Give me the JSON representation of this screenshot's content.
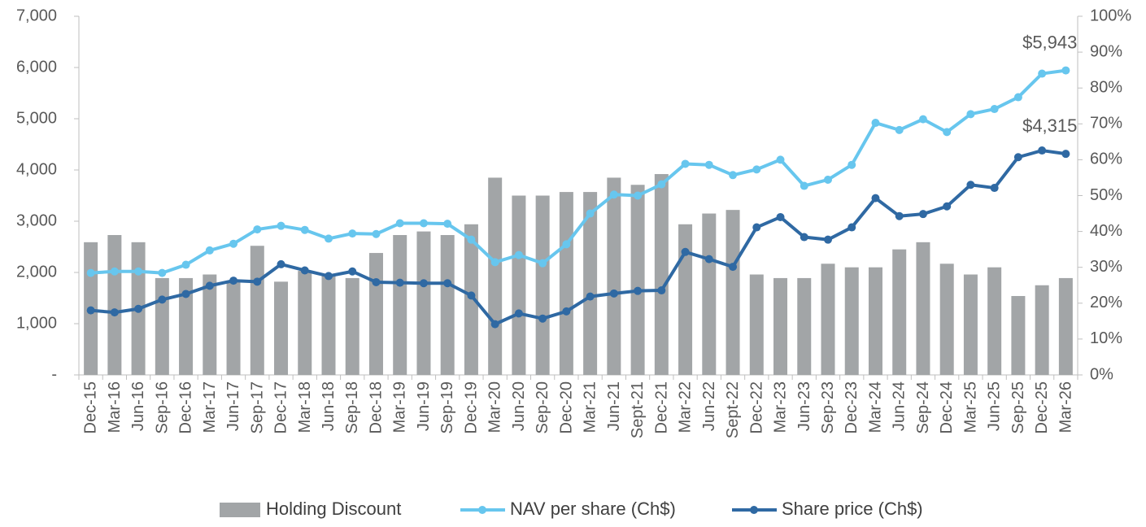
{
  "chart_data": {
    "type": "bar_line",
    "categories": [
      "Dec-15",
      "Mar-16",
      "Jun-16",
      "Sep-16",
      "Dec-16",
      "Mar-17",
      "Jun-17",
      "Sep-17",
      "Dec-17",
      "Mar-18",
      "Jun-18",
      "Sep-18",
      "Dec-18",
      "Mar-19",
      "Jun-19",
      "Sep-19",
      "Dec-19",
      "Mar-20",
      "Jun-20",
      "Sep-20",
      "Dec-20",
      "Mar-21",
      "Jun-21",
      "Sept-21",
      "Dec-21",
      "Mar-22",
      "Jun-22",
      "Sept-22",
      "Dec-22",
      "Mar-23",
      "Jun-23",
      "Sep-23",
      "Dec-23",
      "Mar-24",
      "Jun-24",
      "Sep-24",
      "Dec-24",
      "Mar-25",
      "Jun-25",
      "Sep-25",
      "Dec-25",
      "Mar-26"
    ],
    "series": [
      {
        "name": "Holding Discount",
        "kind": "bar",
        "axis": "y2",
        "color": "#a2a5a7",
        "values": [
          37,
          39,
          37,
          27,
          27,
          28,
          26,
          36,
          26,
          29,
          28,
          27,
          34,
          39,
          40,
          39,
          42,
          55,
          50,
          50,
          51,
          51,
          55,
          53,
          56,
          42,
          45,
          46,
          28,
          27,
          27,
          31,
          30,
          30,
          35,
          37,
          31,
          28,
          30,
          22,
          25,
          27
        ]
      },
      {
        "name": "NAV per share (Ch$)",
        "kind": "line",
        "color": "#67c6ee",
        "values": [
          1990,
          2020,
          2020,
          1990,
          2150,
          2430,
          2560,
          2840,
          2910,
          2830,
          2660,
          2760,
          2750,
          2960,
          2960,
          2950,
          2640,
          2200,
          2340,
          2180,
          2550,
          3150,
          3520,
          3500,
          3720,
          4120,
          4100,
          3900,
          4010,
          4200,
          3690,
          3810,
          4100,
          4920,
          4780,
          4990,
          4740,
          5090,
          5190,
          5420,
          5880,
          5943
        ],
        "value_labels": [
          null,
          null,
          null,
          null,
          null,
          null,
          null,
          null,
          null,
          null,
          null,
          null,
          null,
          null,
          null,
          null,
          null,
          null,
          null,
          null,
          null,
          null,
          null,
          null,
          null,
          null,
          null,
          null,
          null,
          null,
          null,
          null,
          null,
          null,
          null,
          null,
          null,
          null,
          null,
          null,
          null,
          "$5,943"
        ]
      },
      {
        "name": "Share price (Ch$)",
        "kind": "line",
        "color": "#2f69a3",
        "values": [
          1260,
          1220,
          1290,
          1470,
          1580,
          1740,
          1840,
          1820,
          2160,
          2040,
          1930,
          2020,
          1810,
          1800,
          1790,
          1790,
          1550,
          990,
          1200,
          1100,
          1240,
          1530,
          1590,
          1640,
          1650,
          2400,
          2260,
          2110,
          2880,
          3080,
          2690,
          2640,
          2880,
          3450,
          3100,
          3140,
          3290,
          3710,
          3650,
          4250,
          4380,
          4315
        ],
        "value_labels": [
          null,
          null,
          null,
          null,
          null,
          null,
          null,
          null,
          null,
          null,
          null,
          null,
          null,
          null,
          null,
          null,
          null,
          null,
          null,
          null,
          null,
          null,
          null,
          null,
          null,
          null,
          null,
          null,
          null,
          null,
          null,
          null,
          null,
          null,
          null,
          null,
          null,
          null,
          null,
          null,
          null,
          "$4,315"
        ]
      }
    ],
    "ylim": [
      0,
      7000
    ],
    "yticks": [
      {
        "value": 0,
        "label": "-"
      },
      {
        "value": 1000,
        "label": "1,000"
      },
      {
        "value": 2000,
        "label": "2,000"
      },
      {
        "value": 3000,
        "label": "3,000"
      },
      {
        "value": 4000,
        "label": "4,000"
      },
      {
        "value": 5000,
        "label": "5,000"
      },
      {
        "value": 6000,
        "label": "6,000"
      },
      {
        "value": 7000,
        "label": "7,000"
      }
    ],
    "y2lim": [
      0,
      100
    ],
    "y2ticks": [
      {
        "value": 0,
        "label": "0%"
      },
      {
        "value": 10,
        "label": "10%"
      },
      {
        "value": 20,
        "label": "20%"
      },
      {
        "value": 30,
        "label": "30%"
      },
      {
        "value": 40,
        "label": "40%"
      },
      {
        "value": 50,
        "label": "50%"
      },
      {
        "value": 60,
        "label": "60%"
      },
      {
        "value": 70,
        "label": "70%"
      },
      {
        "value": 80,
        "label": "80%"
      },
      {
        "value": 90,
        "label": "90%"
      },
      {
        "value": 100,
        "label": "100%"
      }
    ],
    "grid": false,
    "legend": "bottom"
  }
}
